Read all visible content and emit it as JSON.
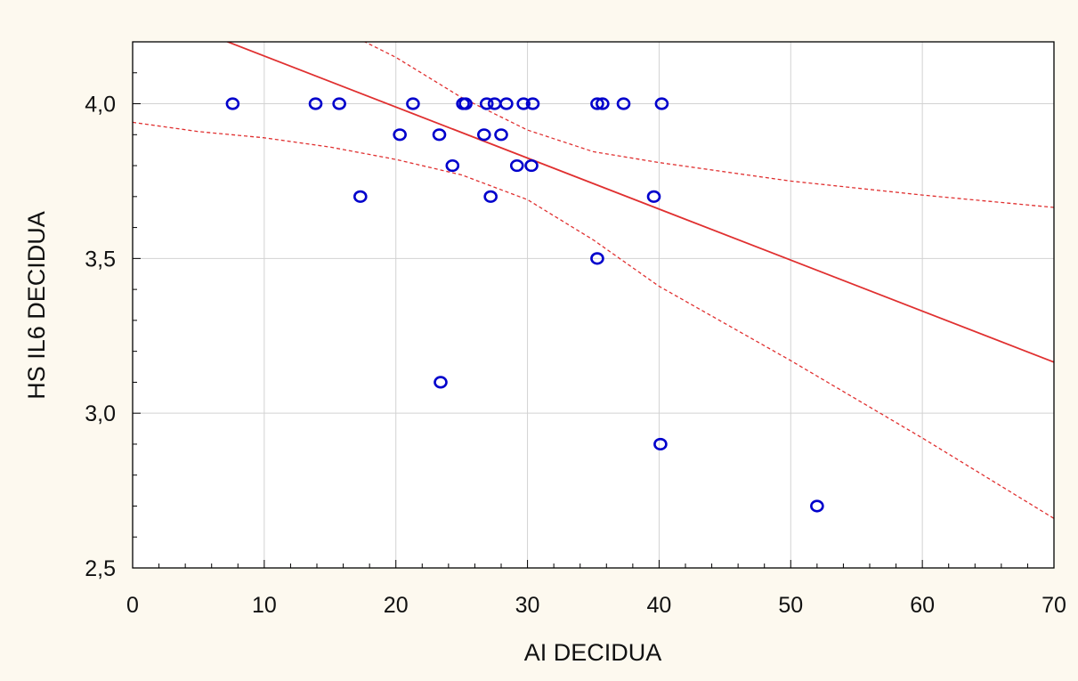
{
  "chart_data": {
    "type": "scatter",
    "title": "",
    "xlabel": "AI DECIDUA",
    "ylabel": "HS IL6 DECIDUA",
    "xlim": [
      0,
      70
    ],
    "ylim": [
      2.5,
      4.2
    ],
    "x_ticks": [
      0,
      10,
      20,
      30,
      40,
      50,
      60,
      70
    ],
    "y_ticks": [
      2.5,
      3.0,
      3.5,
      4.0
    ],
    "x_tick_labels": [
      "0",
      "10",
      "20",
      "30",
      "40",
      "50",
      "60",
      "70"
    ],
    "y_tick_labels": [
      "2,5",
      "3,0",
      "3,5",
      "4,0"
    ],
    "grid": true,
    "marker_color": "#0000cc",
    "fit_color": "#e03030",
    "points": [
      {
        "x": 7.6,
        "y": 4.0
      },
      {
        "x": 13.9,
        "y": 4.0
      },
      {
        "x": 15.7,
        "y": 4.0
      },
      {
        "x": 21.3,
        "y": 4.0
      },
      {
        "x": 25.1,
        "y": 4.0
      },
      {
        "x": 25.3,
        "y": 4.0
      },
      {
        "x": 26.9,
        "y": 4.0
      },
      {
        "x": 27.5,
        "y": 4.0
      },
      {
        "x": 28.4,
        "y": 4.0
      },
      {
        "x": 29.7,
        "y": 4.0
      },
      {
        "x": 30.4,
        "y": 4.0
      },
      {
        "x": 35.3,
        "y": 4.0
      },
      {
        "x": 35.7,
        "y": 4.0
      },
      {
        "x": 37.3,
        "y": 4.0
      },
      {
        "x": 40.2,
        "y": 4.0
      },
      {
        "x": 20.3,
        "y": 3.9
      },
      {
        "x": 23.3,
        "y": 3.9
      },
      {
        "x": 26.7,
        "y": 3.9
      },
      {
        "x": 28.0,
        "y": 3.9
      },
      {
        "x": 24.3,
        "y": 3.8
      },
      {
        "x": 29.2,
        "y": 3.8
      },
      {
        "x": 30.3,
        "y": 3.8
      },
      {
        "x": 17.3,
        "y": 3.7
      },
      {
        "x": 27.2,
        "y": 3.7
      },
      {
        "x": 39.6,
        "y": 3.7
      },
      {
        "x": 35.3,
        "y": 3.5
      },
      {
        "x": 23.4,
        "y": 3.1
      },
      {
        "x": 40.1,
        "y": 2.9
      },
      {
        "x": 52.0,
        "y": 2.7
      }
    ],
    "fit_line": [
      {
        "x": 6,
        "y": 4.22
      },
      {
        "x": 70,
        "y": 3.165
      }
    ],
    "confidence_upper": [
      {
        "x": 16.7,
        "y": 4.22
      },
      {
        "x": 20,
        "y": 4.15
      },
      {
        "x": 25,
        "y": 4.02
      },
      {
        "x": 30,
        "y": 3.915
      },
      {
        "x": 35,
        "y": 3.845
      },
      {
        "x": 40,
        "y": 3.81
      },
      {
        "x": 50,
        "y": 3.75
      },
      {
        "x": 60,
        "y": 3.705
      },
      {
        "x": 70,
        "y": 3.665
      }
    ],
    "confidence_lower": [
      {
        "x": 0,
        "y": 3.94
      },
      {
        "x": 5,
        "y": 3.91
      },
      {
        "x": 10,
        "y": 3.89
      },
      {
        "x": 15,
        "y": 3.86
      },
      {
        "x": 20,
        "y": 3.82
      },
      {
        "x": 25,
        "y": 3.77
      },
      {
        "x": 30,
        "y": 3.69
      },
      {
        "x": 35,
        "y": 3.56
      },
      {
        "x": 40,
        "y": 3.41
      },
      {
        "x": 50,
        "y": 3.17
      },
      {
        "x": 60,
        "y": 2.92
      },
      {
        "x": 70,
        "y": 2.66
      }
    ]
  }
}
